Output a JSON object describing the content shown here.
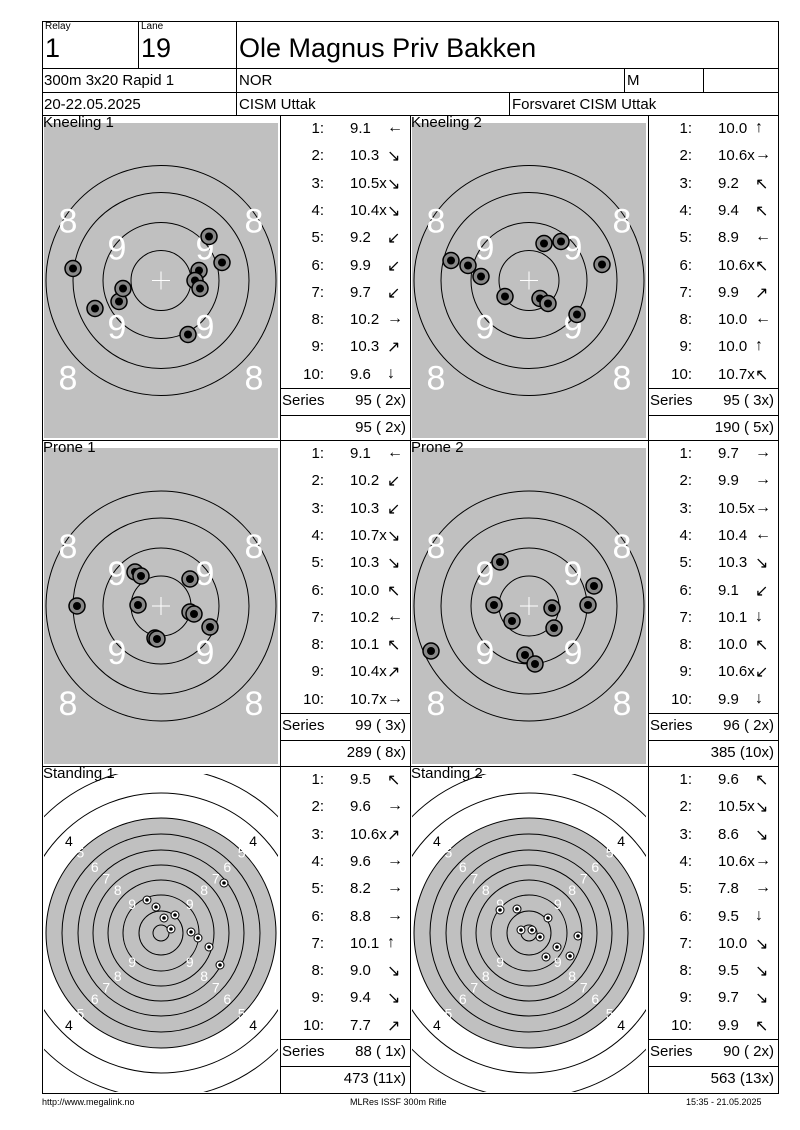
{
  "header": {
    "relay_label": "Relay",
    "relay": "1",
    "lane_label": "Lane",
    "lane": "19",
    "shooter_name": "Ole Magnus Priv Bakken",
    "event": "300m 3x20 Rapid 1",
    "nation": "NOR",
    "gender": "M",
    "dates": "20-22.05.2025",
    "competition": "CISM Uttak",
    "club": "Forsvaret CISM Uttak"
  },
  "series_label": "Series",
  "panels": [
    {
      "title": "Kneeling 1",
      "target": "prone",
      "shots": [
        {
          "n": "1:",
          "v": "9.1",
          "dir": "←"
        },
        {
          "n": "2:",
          "v": "10.3",
          "dir": "↘"
        },
        {
          "n": "3:",
          "v": "10.5x",
          "dir": "↘"
        },
        {
          "n": "4:",
          "v": "10.4x",
          "dir": "↘"
        },
        {
          "n": "5:",
          "v": "9.2",
          "dir": "↙"
        },
        {
          "n": "6:",
          "v": "9.9",
          "dir": "↙"
        },
        {
          "n": "7:",
          "v": "9.7",
          "dir": "↙"
        },
        {
          "n": "8:",
          "v": "10.2",
          "dir": "→"
        },
        {
          "n": "9:",
          "v": "10.3",
          "dir": "↗"
        },
        {
          "n": "10:",
          "v": "9.6",
          "dir": "↓"
        }
      ],
      "series": "95 ( 2x)",
      "total": "95 ( 2x)"
    },
    {
      "title": "Kneeling 2",
      "target": "prone",
      "shots": [
        {
          "n": "1:",
          "v": "10.0",
          "dir": "↑"
        },
        {
          "n": "2:",
          "v": "10.6x",
          "dir": "→"
        },
        {
          "n": "3:",
          "v": "9.2",
          "dir": "↖"
        },
        {
          "n": "4:",
          "v": "9.4",
          "dir": "↖"
        },
        {
          "n": "5:",
          "v": "8.9",
          "dir": "←"
        },
        {
          "n": "6:",
          "v": "10.6x",
          "dir": "↖"
        },
        {
          "n": "7:",
          "v": "9.9",
          "dir": "↗"
        },
        {
          "n": "8:",
          "v": "10.0",
          "dir": "←"
        },
        {
          "n": "9:",
          "v": "10.0",
          "dir": "↑"
        },
        {
          "n": "10:",
          "v": "10.7x",
          "dir": "↖"
        }
      ],
      "series": "95 ( 3x)",
      "total": "190 ( 5x)"
    },
    {
      "title": "Prone 1",
      "target": "prone",
      "shots": [
        {
          "n": "1:",
          "v": "9.1",
          "dir": "←"
        },
        {
          "n": "2:",
          "v": "10.2",
          "dir": "↙"
        },
        {
          "n": "3:",
          "v": "10.3",
          "dir": "↙"
        },
        {
          "n": "4:",
          "v": "10.7x",
          "dir": "↘"
        },
        {
          "n": "5:",
          "v": "10.3",
          "dir": "↘"
        },
        {
          "n": "6:",
          "v": "10.0",
          "dir": "↖"
        },
        {
          "n": "7:",
          "v": "10.2",
          "dir": "←"
        },
        {
          "n": "8:",
          "v": "10.1",
          "dir": "↖"
        },
        {
          "n": "9:",
          "v": "10.4x",
          "dir": "↗"
        },
        {
          "n": "10:",
          "v": "10.7x",
          "dir": "→"
        }
      ],
      "series": "99 ( 3x)",
      "total": "289 ( 8x)"
    },
    {
      "title": "Prone 2",
      "target": "prone",
      "shots": [
        {
          "n": "1:",
          "v": "9.7",
          "dir": "→"
        },
        {
          "n": "2:",
          "v": "9.9",
          "dir": "→"
        },
        {
          "n": "3:",
          "v": "10.5x",
          "dir": "→"
        },
        {
          "n": "4:",
          "v": "10.4",
          "dir": "←"
        },
        {
          "n": "5:",
          "v": "10.3",
          "dir": "↘"
        },
        {
          "n": "6:",
          "v": "9.1",
          "dir": "↙"
        },
        {
          "n": "7:",
          "v": "10.1",
          "dir": "↓"
        },
        {
          "n": "8:",
          "v": "10.0",
          "dir": "↖"
        },
        {
          "n": "9:",
          "v": "10.6x",
          "dir": "↙"
        },
        {
          "n": "10:",
          "v": "9.9",
          "dir": "↓"
        }
      ],
      "series": "96 ( 2x)",
      "total": "385 (10x)"
    },
    {
      "title": "Standing 1",
      "target": "standing",
      "shots": [
        {
          "n": "1:",
          "v": "9.5",
          "dir": "↖"
        },
        {
          "n": "2:",
          "v": "9.6",
          "dir": "→"
        },
        {
          "n": "3:",
          "v": "10.6x",
          "dir": "↗"
        },
        {
          "n": "4:",
          "v": "9.6",
          "dir": "→"
        },
        {
          "n": "5:",
          "v": "8.2",
          "dir": "→"
        },
        {
          "n": "6:",
          "v": "8.8",
          "dir": "→"
        },
        {
          "n": "7:",
          "v": "10.1",
          "dir": "↑"
        },
        {
          "n": "8:",
          "v": "9.0",
          "dir": "↘"
        },
        {
          "n": "9:",
          "v": "9.4",
          "dir": "↘"
        },
        {
          "n": "10:",
          "v": "7.7",
          "dir": "↗"
        }
      ],
      "series": "88 ( 1x)",
      "total": "473 (11x)"
    },
    {
      "title": "Standing 2",
      "target": "standing",
      "shots": [
        {
          "n": "1:",
          "v": "9.6",
          "dir": "↖"
        },
        {
          "n": "2:",
          "v": "10.5x",
          "dir": "↘"
        },
        {
          "n": "3:",
          "v": "8.6",
          "dir": "↘"
        },
        {
          "n": "4:",
          "v": "10.6x",
          "dir": "→"
        },
        {
          "n": "5:",
          "v": "7.8",
          "dir": "→"
        },
        {
          "n": "6:",
          "v": "9.5",
          "dir": "↓"
        },
        {
          "n": "7:",
          "v": "10.0",
          "dir": "↘"
        },
        {
          "n": "8:",
          "v": "9.5",
          "dir": "↘"
        },
        {
          "n": "9:",
          "v": "9.7",
          "dir": "↘"
        },
        {
          "n": "10:",
          "v": "9.9",
          "dir": "↖"
        }
      ],
      "series": "90 ( 2x)",
      "total": "563 (13x)"
    }
  ],
  "footer": {
    "url": "http://www.megalink.no",
    "software": "MLRes ISSF 300m Rifle",
    "printed": "15:35 - 21.05.2025"
  }
}
